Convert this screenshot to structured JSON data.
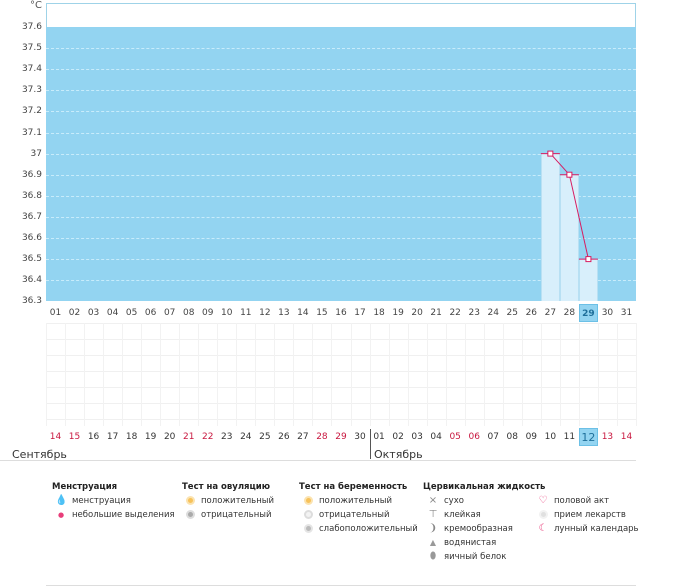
{
  "unit": "°C",
  "y_labels": [
    "37.6",
    "37.5",
    "37.4",
    "37.3",
    "37.2",
    "37.1",
    "37",
    "36.9",
    "36.8",
    "36.7",
    "36.6",
    "36.5",
    "36.4",
    "36.3"
  ],
  "x_days": [
    "01",
    "02",
    "03",
    "04",
    "05",
    "06",
    "07",
    "08",
    "09",
    "10",
    "11",
    "12",
    "13",
    "14",
    "15",
    "16",
    "17",
    "18",
    "19",
    "20",
    "21",
    "22",
    "23",
    "24",
    "25",
    "26",
    "27",
    "28",
    "29",
    "30",
    "31"
  ],
  "today_index": 28,
  "chart_data": {
    "type": "line",
    "unit": "°C",
    "ylim": [
      36.3,
      37.7
    ],
    "x": [
      "27",
      "28",
      "29"
    ],
    "values": [
      37.0,
      36.9,
      36.5
    ],
    "line_color": "#d81b60",
    "fill_color": "#93d4f1"
  },
  "calendar": {
    "days": [
      {
        "d": "14",
        "we": true
      },
      {
        "d": "15",
        "we": true
      },
      {
        "d": "16",
        "we": false
      },
      {
        "d": "17",
        "we": false
      },
      {
        "d": "18",
        "we": false
      },
      {
        "d": "19",
        "we": false
      },
      {
        "d": "20",
        "we": false
      },
      {
        "d": "21",
        "we": true
      },
      {
        "d": "22",
        "we": true
      },
      {
        "d": "23",
        "we": false
      },
      {
        "d": "24",
        "we": false
      },
      {
        "d": "25",
        "we": false
      },
      {
        "d": "26",
        "we": false
      },
      {
        "d": "27",
        "we": false
      },
      {
        "d": "28",
        "we": true
      },
      {
        "d": "29",
        "we": true
      },
      {
        "d": "30",
        "we": false
      },
      {
        "d": "01",
        "we": false
      },
      {
        "d": "02",
        "we": false
      },
      {
        "d": "03",
        "we": false
      },
      {
        "d": "04",
        "we": false
      },
      {
        "d": "05",
        "we": true
      },
      {
        "d": "06",
        "we": true
      },
      {
        "d": "07",
        "we": false
      },
      {
        "d": "08",
        "we": false
      },
      {
        "d": "09",
        "we": false
      },
      {
        "d": "10",
        "we": false
      },
      {
        "d": "11",
        "we": false
      },
      {
        "d": "12",
        "we": false
      },
      {
        "d": "13",
        "we": true
      },
      {
        "d": "14",
        "we": true
      }
    ],
    "month1": "Сентябрь",
    "month2": "Октябрь"
  },
  "legend": {
    "menstruation": {
      "title": "Менструация",
      "items": [
        "менструация",
        "небольшие выделения"
      ]
    },
    "ovulation": {
      "title": "Тест на овуляцию",
      "items": [
        "положительный",
        "отрицательный"
      ]
    },
    "pregnancy": {
      "title": "Тест на беременность",
      "items": [
        "положительный",
        "отрицательный",
        "слабоположительный"
      ]
    },
    "cervical": {
      "title": "Цервикальная жидкость",
      "items": [
        "сухо",
        "клейкая",
        "кремообразная",
        "водянистая",
        "яичный белок"
      ]
    },
    "other": {
      "items": [
        "половой акт",
        "прием лекарств",
        "лунный календарь"
      ]
    }
  },
  "colors": {
    "accent": "#93d4f1",
    "weekend": "#c8173f",
    "line": "#d81b60"
  }
}
